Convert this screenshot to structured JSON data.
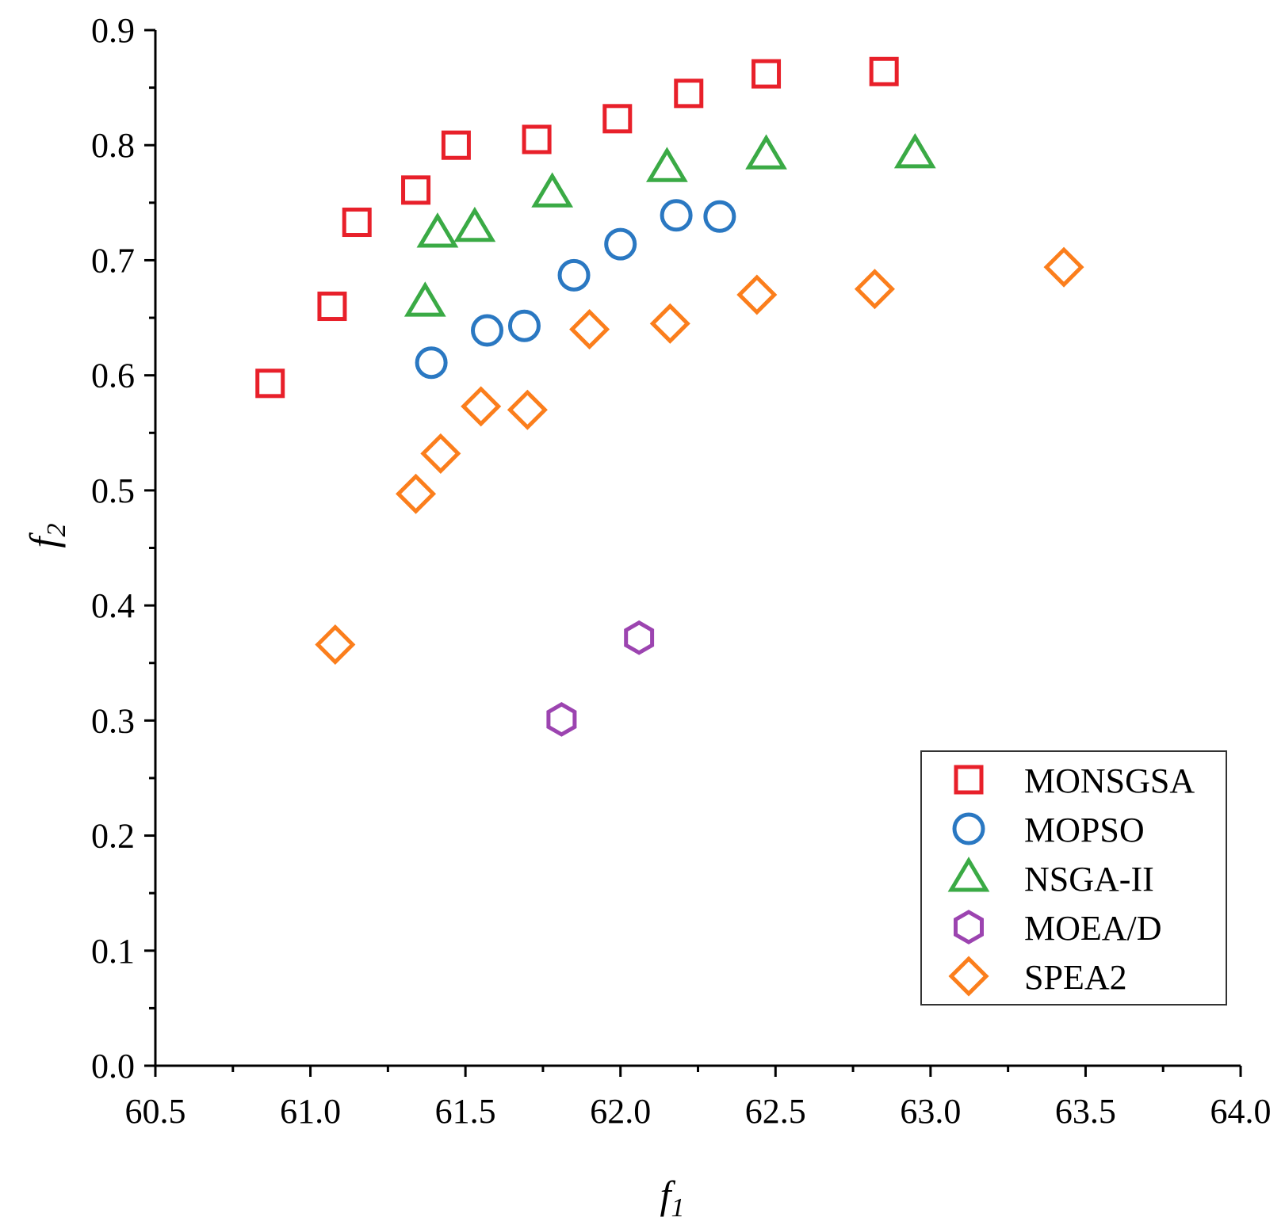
{
  "chart_data": {
    "type": "scatter",
    "title": "",
    "xlabel": {
      "main": "f",
      "sub": "1"
    },
    "ylabel": {
      "main": "f",
      "sub": "2"
    },
    "xlim": [
      60.5,
      64.0
    ],
    "ylim": [
      0.0,
      0.9
    ],
    "xticks": [
      "60.5",
      "61.0",
      "61.5",
      "62.0",
      "62.5",
      "63.0",
      "63.5",
      "64.0"
    ],
    "yticks": [
      "0.0",
      "0.1",
      "0.2",
      "0.3",
      "0.4",
      "0.5",
      "0.6",
      "0.7",
      "0.8",
      "0.9"
    ],
    "grid": false,
    "legend_position": "bottom-right",
    "series": [
      {
        "name": "MONSGSA",
        "marker": "square",
        "color": "#e8202a",
        "points": [
          [
            60.87,
            0.593
          ],
          [
            61.07,
            0.66
          ],
          [
            61.15,
            0.733
          ],
          [
            61.34,
            0.761
          ],
          [
            61.47,
            0.8
          ],
          [
            61.73,
            0.805
          ],
          [
            61.99,
            0.823
          ],
          [
            62.22,
            0.845
          ],
          [
            62.47,
            0.862
          ],
          [
            62.85,
            0.864
          ]
        ]
      },
      {
        "name": "MOPSO",
        "marker": "circle",
        "color": "#2a78c2",
        "points": [
          [
            61.39,
            0.611
          ],
          [
            61.57,
            0.639
          ],
          [
            61.69,
            0.643
          ],
          [
            61.85,
            0.687
          ],
          [
            62.0,
            0.714
          ],
          [
            62.18,
            0.739
          ],
          [
            62.32,
            0.738
          ]
        ]
      },
      {
        "name": "NSGA-II",
        "marker": "triangle",
        "color": "#3aaa45",
        "points": [
          [
            61.37,
            0.663
          ],
          [
            61.41,
            0.723
          ],
          [
            61.53,
            0.728
          ],
          [
            61.78,
            0.758
          ],
          [
            62.15,
            0.78
          ],
          [
            62.47,
            0.791
          ],
          [
            62.95,
            0.792
          ]
        ]
      },
      {
        "name": "MOEA/D",
        "marker": "hexagon",
        "color": "#9c44b0",
        "points": [
          [
            61.81,
            0.301
          ],
          [
            62.06,
            0.372
          ]
        ]
      },
      {
        "name": "SPEA2",
        "marker": "diamond",
        "color": "#fb7e1c",
        "points": [
          [
            61.08,
            0.366
          ],
          [
            61.34,
            0.497
          ],
          [
            61.42,
            0.532
          ],
          [
            61.55,
            0.573
          ],
          [
            61.7,
            0.57
          ],
          [
            61.9,
            0.64
          ],
          [
            62.16,
            0.645
          ],
          [
            62.44,
            0.67
          ],
          [
            62.82,
            0.675
          ],
          [
            63.43,
            0.694
          ]
        ]
      }
    ]
  }
}
